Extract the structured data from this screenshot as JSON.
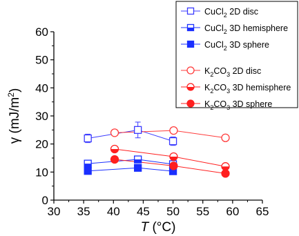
{
  "chart_data": {
    "type": "scatter",
    "xlabel": "T (°C)",
    "ylabel": "γ (mJ/m²)",
    "xlim": [
      30,
      65
    ],
    "ylim": [
      0,
      60
    ],
    "xticks": [
      "30",
      "35",
      "40",
      "45",
      "50",
      "55",
      "60",
      "65"
    ],
    "yticks": [
      "0",
      "10",
      "20",
      "30",
      "40",
      "50",
      "60"
    ],
    "grid": false,
    "legend_placement": "top-right",
    "series": [
      {
        "name": "CuCl2 2D disc",
        "label_main": "CuCl",
        "label_sub": "2",
        "label_rest": " 2D disc",
        "color": "#3a3aff",
        "marker": "square-open",
        "x": [
          35.7,
          44.1,
          50.0
        ],
        "y": [
          22.0,
          25.0,
          21.0
        ],
        "err": [
          1.5,
          2.8,
          1.5
        ]
      },
      {
        "name": "CuCl2 3D hemisphere",
        "label_main": "CuCl",
        "label_sub": "2",
        "label_rest": " 3D hemisphere",
        "color": "#1a2fff",
        "marker": "square-half",
        "x": [
          35.7,
          44.1,
          50.0
        ],
        "y": [
          13.0,
          14.5,
          12.8
        ],
        "err": [
          0,
          0,
          0
        ]
      },
      {
        "name": "CuCl2 3D sphere",
        "label_main": "CuCl",
        "label_sub": "2",
        "label_rest": " 3D sphere",
        "color": "#1a2fff",
        "marker": "square-filled",
        "x": [
          35.7,
          44.1,
          50.0
        ],
        "y": [
          10.4,
          11.5,
          10.3
        ],
        "err": [
          0,
          0,
          0
        ]
      },
      {
        "name": "K2CO3 2D disc",
        "label_main": "K",
        "label_sub": "2",
        "label_rest": "CO",
        "label_sub2": "3",
        "label_rest2": " 2D disc",
        "color": "#ff3b3b",
        "marker": "circle-open",
        "x": [
          40.2,
          50.1,
          58.8
        ],
        "y": [
          24.0,
          24.8,
          22.2
        ],
        "err": [
          0,
          0,
          0.8
        ]
      },
      {
        "name": "K2CO3 3D hemisphere",
        "label_main": "K",
        "label_sub": "2",
        "label_rest": "CO",
        "label_sub2": "3",
        "label_rest2": " 3D hemisphere",
        "color": "#ff1f1f",
        "marker": "circle-half",
        "x": [
          40.2,
          50.1,
          58.8
        ],
        "y": [
          18.2,
          15.5,
          12.0
        ],
        "err": [
          0,
          0,
          0
        ]
      },
      {
        "name": "K2CO3 3D sphere",
        "label_main": "K",
        "label_sub": "2",
        "label_rest": "CO",
        "label_sub2": "3",
        "label_rest2": " 3D sphere",
        "color": "#ff1f1f",
        "marker": "circle-filled",
        "x": [
          40.2,
          50.1,
          58.8
        ],
        "y": [
          14.5,
          12.2,
          9.5
        ],
        "err": [
          0,
          0,
          0
        ]
      }
    ]
  }
}
